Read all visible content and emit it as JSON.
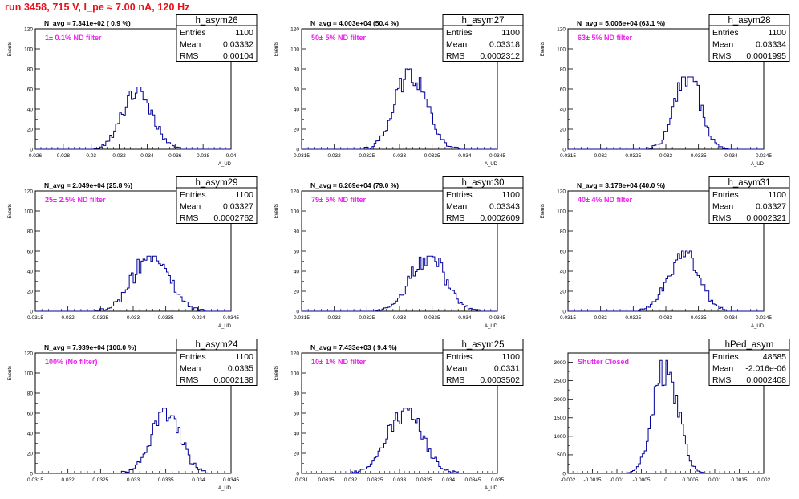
{
  "page": {
    "title": "run 3458,   715 V, I_pe ≈ 7.00 nA, 120 Hz"
  },
  "chart_data": [
    {
      "type": "histogram",
      "name": "h_asym26",
      "note_top": "N_avg = 7.341e+02 ( 0.9 %)",
      "note_filter": "1± 0.1% ND filter",
      "xlabel": "A_UD",
      "ylabel": "Events",
      "xlim": [
        0.026,
        0.04
      ],
      "ylim": [
        0,
        120
      ],
      "xticks": [
        "0.026",
        "0.028",
        "0.03",
        "0.032",
        "0.034",
        "0.036",
        "0.038",
        "0.04"
      ],
      "yticks": [
        "0",
        "20",
        "40",
        "60",
        "80",
        "100",
        "120"
      ],
      "stats": {
        "entries_label": "Entries",
        "entries": "1100",
        "mean_label": "Mean",
        "mean": "0.03332",
        "rms_label": "RMS",
        "rms": "0.00104"
      },
      "mean": 0.03332,
      "rms": 0.00104,
      "peak": 62,
      "grid": false,
      "legend": "top-right"
    },
    {
      "type": "histogram",
      "name": "h_asym27",
      "note_top": "N_avg = 4.003e+04 (50.4 %)",
      "note_filter": "50± 5% ND filter",
      "xlabel": "A_UD",
      "ylabel": "Events",
      "xlim": [
        0.0315,
        0.0345
      ],
      "ylim": [
        0,
        120
      ],
      "xticks": [
        "0.0315",
        "0.032",
        "0.0325",
        "0.033",
        "0.0335",
        "0.034",
        "0.0345"
      ],
      "yticks": [
        "0",
        "20",
        "40",
        "60",
        "80",
        "100",
        "120"
      ],
      "stats": {
        "entries_label": "Entries",
        "entries": "1100",
        "mean_label": "Mean",
        "mean": "0.03318",
        "rms_label": "RMS",
        "rms": "0.0002312"
      },
      "mean": 0.03318,
      "rms": 0.0002312,
      "peak": 80,
      "grid": false,
      "legend": "top-right"
    },
    {
      "type": "histogram",
      "name": "h_asym28",
      "note_top": "N_avg = 5.006e+04 (63.1 %)",
      "note_filter": "63± 5% ND filter",
      "xlabel": "A_UD",
      "ylabel": "Events",
      "xlim": [
        0.0315,
        0.0345
      ],
      "ylim": [
        0,
        120
      ],
      "xticks": [
        "0.0315",
        "0.032",
        "0.0325",
        "0.033",
        "0.0335",
        "0.034",
        "0.0345"
      ],
      "yticks": [
        "0",
        "20",
        "40",
        "60",
        "80",
        "100",
        "120"
      ],
      "stats": {
        "entries_label": "Entries",
        "entries": "1100",
        "mean_label": "Mean",
        "mean": "0.03334",
        "rms_label": "RMS",
        "rms": "0.0001995"
      },
      "mean": 0.03334,
      "rms": 0.0001995,
      "peak": 72,
      "grid": false,
      "legend": "top-right"
    },
    {
      "type": "histogram",
      "name": "h_asym29",
      "note_top": "N_avg = 2.049e+04 (25.8 %)",
      "note_filter": "25± 2.5% ND filter",
      "xlabel": "A_UD",
      "ylabel": "Events",
      "xlim": [
        0.0315,
        0.0345
      ],
      "ylim": [
        0,
        120
      ],
      "xticks": [
        "0.0315",
        "0.032",
        "0.0325",
        "0.033",
        "0.0335",
        "0.034",
        "0.0345"
      ],
      "yticks": [
        "0",
        "20",
        "40",
        "60",
        "80",
        "100",
        "120"
      ],
      "stats": {
        "entries_label": "Entries",
        "entries": "1100",
        "mean_label": "Mean",
        "mean": "0.03327",
        "rms_label": "RMS",
        "rms": "0.0002762"
      },
      "mean": 0.03327,
      "rms": 0.0002762,
      "peak": 55,
      "grid": false,
      "legend": "top-right"
    },
    {
      "type": "histogram",
      "name": "h_asym30",
      "note_top": "N_avg = 6.269e+04 (79.0 %)",
      "note_filter": "79± 5% ND filter",
      "xlabel": "A_UD",
      "ylabel": "Events",
      "xlim": [
        0.0315,
        0.0345
      ],
      "ylim": [
        0,
        120
      ],
      "xticks": [
        "0.0315",
        "0.032",
        "0.0325",
        "0.033",
        "0.0335",
        "0.034",
        "0.0345"
      ],
      "yticks": [
        "0",
        "20",
        "40",
        "60",
        "80",
        "100",
        "120"
      ],
      "stats": {
        "entries_label": "Entries",
        "entries": "1100",
        "mean_label": "Mean",
        "mean": "0.03343",
        "rms_label": "RMS",
        "rms": "0.0002609"
      },
      "mean": 0.03343,
      "rms": 0.0002609,
      "peak": 55,
      "grid": false,
      "legend": "top-right"
    },
    {
      "type": "histogram",
      "name": "h_asym31",
      "note_top": "N_avg = 3.178e+04 (40.0 %)",
      "note_filter": "40± 4% ND filter",
      "xlabel": "A_UD",
      "ylabel": "Events",
      "xlim": [
        0.0315,
        0.0345
      ],
      "ylim": [
        0,
        120
      ],
      "xticks": [
        "0.0315",
        "0.032",
        "0.0325",
        "0.033",
        "0.0335",
        "0.034",
        "0.0345"
      ],
      "yticks": [
        "0",
        "20",
        "40",
        "60",
        "80",
        "100",
        "120"
      ],
      "stats": {
        "entries_label": "Entries",
        "entries": "1100",
        "mean_label": "Mean",
        "mean": "0.03327",
        "rms_label": "RMS",
        "rms": "0.0002321"
      },
      "mean": 0.03327,
      "rms": 0.0002321,
      "peak": 60,
      "grid": false,
      "legend": "top-right"
    },
    {
      "type": "histogram",
      "name": "h_asym24",
      "note_top": "N_avg = 7.939e+04 (100.0 %)",
      "note_filter": "100% (No filter)",
      "xlabel": "A_UD",
      "ylabel": "Events",
      "xlim": [
        0.0315,
        0.0345
      ],
      "ylim": [
        0,
        120
      ],
      "xticks": [
        "0.0315",
        "0.032",
        "0.0325",
        "0.033",
        "0.0335",
        "0.034",
        "0.0345"
      ],
      "yticks": [
        "0",
        "20",
        "40",
        "60",
        "80",
        "100",
        "120"
      ],
      "stats": {
        "entries_label": "Entries",
        "entries": "1100",
        "mean_label": "Mean",
        "mean": "0.0335",
        "rms_label": "RMS",
        "rms": "0.0002138"
      },
      "mean": 0.0335,
      "rms": 0.0002138,
      "peak": 65,
      "grid": false,
      "legend": "top-right"
    },
    {
      "type": "histogram",
      "name": "h_asym25",
      "note_top": "N_avg = 7.433e+03 ( 9.4 %)",
      "note_filter": "10± 1% ND filter",
      "xlabel": "A_UD",
      "ylabel": "Events",
      "xlim": [
        0.031,
        0.035
      ],
      "ylim": [
        0,
        120
      ],
      "xticks": [
        "0.031",
        "0.0315",
        "0.032",
        "0.0325",
        "0.033",
        "0.0335",
        "0.034",
        "0.0345",
        "0.035"
      ],
      "yticks": [
        "0",
        "20",
        "40",
        "60",
        "80",
        "100",
        "120"
      ],
      "stats": {
        "entries_label": "Entries",
        "entries": "1100",
        "mean_label": "Mean",
        "mean": "0.0331",
        "rms_label": "RMS",
        "rms": "0.0003502"
      },
      "mean": 0.0331,
      "rms": 0.0003502,
      "peak": 65,
      "grid": false,
      "legend": "top-right"
    },
    {
      "type": "histogram",
      "name": "hPed_asym",
      "note_top": "",
      "note_filter": "Shutter Closed",
      "xlabel": "",
      "ylabel": "",
      "xlim": [
        -0.002,
        0.002
      ],
      "ylim": [
        0,
        3250
      ],
      "xticks": [
        "-0.002",
        "-0.0015",
        "-0.001",
        "-0.0005",
        "0",
        "0.0005",
        "0.001",
        "0.0015",
        "0.002"
      ],
      "yticks": [
        "0",
        "500",
        "1000",
        "1500",
        "2000",
        "2500",
        "3000"
      ],
      "stats": {
        "entries_label": "Entries",
        "entries": "48585",
        "mean_label": "Mean",
        "mean": "-2.016e-06",
        "rms_label": "RMS",
        "rms": "0.0002408"
      },
      "mean": -2.016e-06,
      "rms": 0.0002408,
      "peak": 3050,
      "grid": false,
      "legend": "top-right"
    }
  ]
}
